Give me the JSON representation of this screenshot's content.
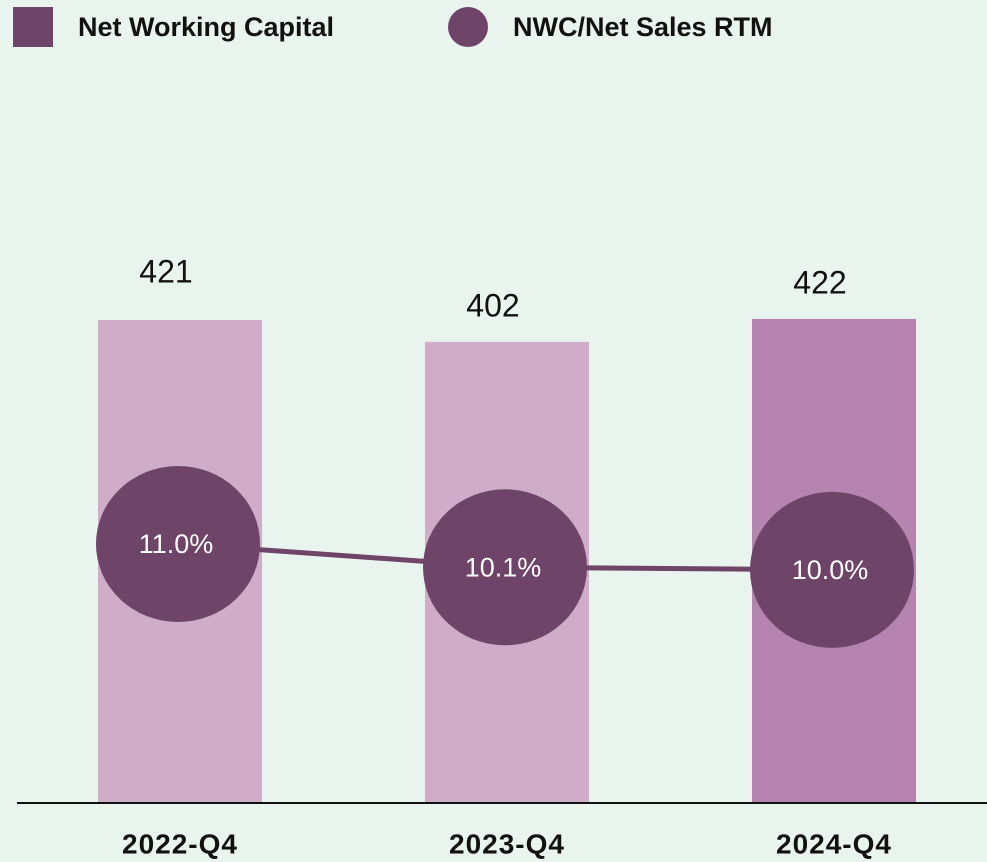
{
  "chart_data": {
    "type": "bar-line",
    "categories": [
      "2022-Q4",
      "2023-Q4",
      "2024-Q4"
    ],
    "series": [
      {
        "name": "Net Working Capital",
        "type": "bar",
        "color": "#6e4468",
        "colors": [
          "#cfadc9",
          "#cfadc9",
          "#b584b0"
        ],
        "values": [
          421,
          402,
          422
        ]
      },
      {
        "name": "NWC/Net Sales RTM",
        "type": "line",
        "axis": "y2",
        "color": "#6e4468",
        "values": [
          11.0,
          10.1,
          10.0
        ],
        "value_labels": [
          "11.0%",
          "10.1%",
          "10.0%"
        ]
      }
    ],
    "ylim": [
      0,
      700
    ],
    "y2lim": [
      1,
      32
    ]
  }
}
